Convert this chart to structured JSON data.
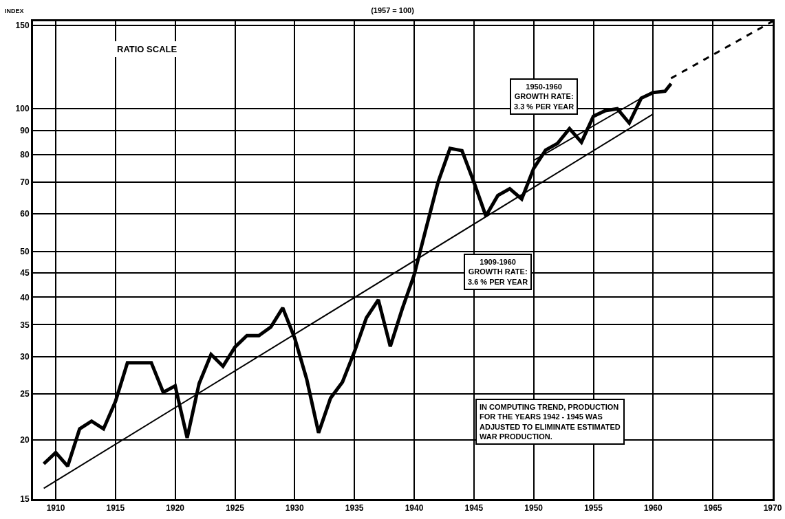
{
  "chart_data": {
    "type": "line",
    "title": "(1957 = 100)",
    "ylabel": "INDEX",
    "series": [
      {
        "color": "#000000",
        "line_style": "solid",
        "x": [
          1909,
          1910,
          1911,
          1912,
          1913,
          1914,
          1915,
          1916,
          1917,
          1918,
          1919,
          1920,
          1921,
          1922,
          1923,
          1924,
          1925,
          1926,
          1927,
          1928,
          1929,
          1930,
          1931,
          1932,
          1933,
          1934,
          1935,
          1936,
          1937,
          1938,
          1939,
          1940,
          1941,
          1942,
          1943,
          1944,
          1945,
          1946,
          1947,
          1948,
          1949,
          1950,
          1951,
          1952,
          1953,
          1954,
          1955,
          1956,
          1957,
          1958,
          1959,
          1960,
          1961,
          1961.5
        ],
        "values": [
          17.8,
          18.8,
          17.6,
          21.1,
          21.9,
          21.1,
          24.1,
          29.1,
          29.1,
          29.1,
          25.2,
          26.0,
          20.2,
          26.3,
          30.3,
          28.6,
          31.4,
          33.2,
          33.2,
          34.6,
          38.0,
          32.8,
          26.9,
          20.7,
          24.5,
          26.5,
          30.7,
          36.2,
          39.5,
          31.5,
          37.8,
          44.6,
          56,
          70,
          82.5,
          81.6,
          70,
          59.4,
          65.6,
          67.8,
          64.5,
          74.8,
          81.8,
          84.5,
          90.8,
          85.0,
          96.4,
          99.1,
          100,
          93.3,
          105.3,
          108.2,
          108.9,
          113
        ]
      },
      {
        "color": "#000000",
        "line_style": "solid",
        "x": [
          1909,
          1960
        ],
        "values": [
          15.8,
          97.5
        ]
      },
      {
        "color": "#000000",
        "line_style": "solid",
        "x": [
          1950,
          1960
        ],
        "values": [
          77.8,
          108.9
        ]
      },
      {
        "color": "#000000",
        "line_style": "dashed",
        "x": [
          1961.5,
          1970
        ],
        "values": [
          116,
          153
        ]
      }
    ],
    "xlim": [
      1908.1,
      1970
    ],
    "xticks": [
      1910,
      1915,
      1920,
      1925,
      1930,
      1935,
      1940,
      1945,
      1950,
      1955,
      1960,
      1965,
      1970
    ],
    "ylim": [
      15,
      153
    ],
    "yticks": [
      15,
      20,
      25,
      30,
      35,
      40,
      45,
      50,
      60,
      70,
      80,
      90,
      100,
      150
    ],
    "log": true,
    "grid": true,
    "marker": "none",
    "annotations": [
      "RATIO SCALE",
      "1950-1960\nGROWTH RATE:\n3.3 % PER YEAR",
      "1909-1960\nGROWTH RATE:\n3.6 % PER YEAR",
      "IN COMPUTING TREND, PRODUCTION\nFOR THE YEARS 1942 - 1945 WAS\nADJUSTED TO ELIMINATE ESTIMATED\nWAR PRODUCTION."
    ]
  }
}
